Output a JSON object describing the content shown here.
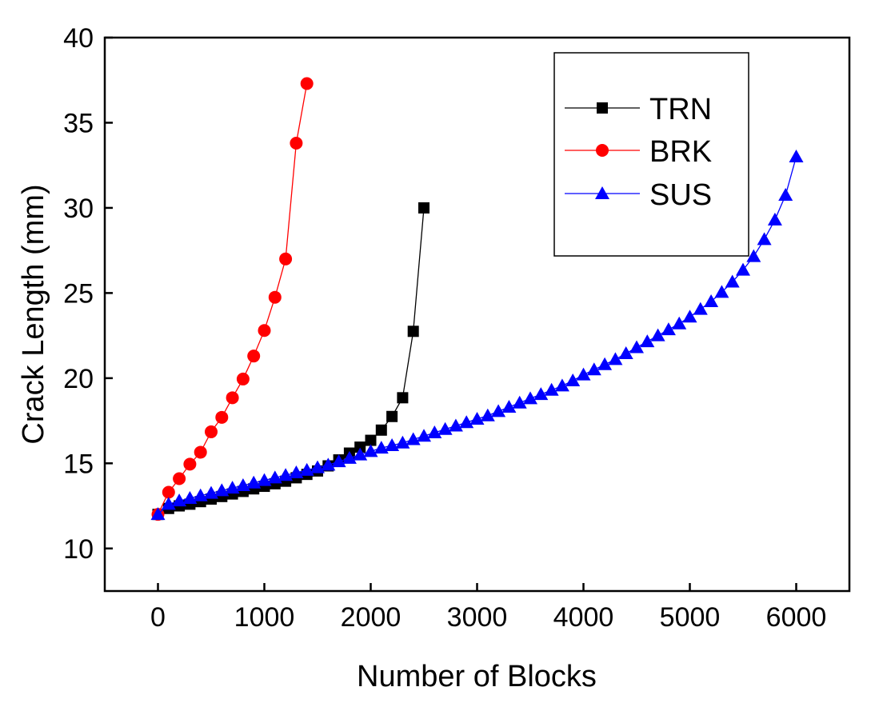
{
  "chart_data": {
    "type": "line",
    "title": "",
    "xlabel": "Number of Blocks",
    "ylabel": "Crack Length (mm)",
    "xlim": [
      -500,
      6500
    ],
    "ylim": [
      7.5,
      40
    ],
    "xticks": [
      0,
      1000,
      2000,
      3000,
      4000,
      5000,
      6000
    ],
    "yticks": [
      10,
      15,
      20,
      25,
      30,
      35,
      40
    ],
    "xtick_labels": [
      "0",
      "1000",
      "2000",
      "3000",
      "4000",
      "5000",
      "6000"
    ],
    "ytick_labels": [
      "10",
      "15",
      "20",
      "25",
      "30",
      "35",
      "40"
    ],
    "legend_position": "top-right",
    "series": [
      {
        "name": "TRN",
        "color": "#000000",
        "marker": "square",
        "x": [
          0,
          100,
          200,
          300,
          400,
          500,
          600,
          700,
          800,
          900,
          1000,
          1100,
          1200,
          1300,
          1400,
          1500,
          1600,
          1700,
          1800,
          1900,
          2000,
          2100,
          2200,
          2300,
          2400,
          2500
        ],
        "y": [
          12.0,
          12.35,
          12.5,
          12.6,
          12.75,
          12.9,
          13.05,
          13.2,
          13.35,
          13.5,
          13.65,
          13.8,
          13.95,
          14.15,
          14.35,
          14.55,
          14.85,
          15.2,
          15.6,
          15.95,
          16.35,
          16.95,
          17.75,
          18.85,
          22.75,
          30.0
        ]
      },
      {
        "name": "BRK",
        "color": "#ff0000",
        "marker": "circle",
        "x": [
          0,
          100,
          200,
          300,
          400,
          500,
          600,
          700,
          800,
          900,
          1000,
          1100,
          1200,
          1300,
          1400
        ],
        "y": [
          12.0,
          13.3,
          14.1,
          14.95,
          15.65,
          16.85,
          17.7,
          18.85,
          19.95,
          21.3,
          22.8,
          24.75,
          27.0,
          33.8,
          37.3
        ]
      },
      {
        "name": "SUS",
        "color": "#0000ff",
        "marker": "triangle",
        "x": [
          0,
          100,
          200,
          300,
          400,
          500,
          600,
          700,
          800,
          900,
          1000,
          1100,
          1200,
          1300,
          1400,
          1500,
          1600,
          1700,
          1800,
          1900,
          2000,
          2100,
          2200,
          2300,
          2400,
          2500,
          2600,
          2700,
          2800,
          2900,
          3000,
          3100,
          3200,
          3300,
          3400,
          3500,
          3600,
          3700,
          3800,
          3900,
          4000,
          4100,
          4200,
          4300,
          4400,
          4500,
          4600,
          4700,
          4800,
          4900,
          5000,
          5100,
          5200,
          5300,
          5400,
          5500,
          5600,
          5700,
          5800,
          5900,
          6000
        ],
        "y": [
          12.0,
          12.6,
          12.8,
          12.95,
          13.1,
          13.25,
          13.4,
          13.55,
          13.7,
          13.85,
          14.0,
          14.15,
          14.3,
          14.45,
          14.6,
          14.75,
          14.9,
          15.1,
          15.3,
          15.5,
          15.7,
          15.9,
          16.05,
          16.2,
          16.4,
          16.6,
          16.8,
          17.0,
          17.2,
          17.4,
          17.6,
          17.8,
          18.05,
          18.3,
          18.55,
          18.8,
          19.05,
          19.3,
          19.55,
          19.85,
          20.2,
          20.5,
          20.8,
          21.1,
          21.45,
          21.8,
          22.15,
          22.5,
          22.85,
          23.2,
          23.6,
          24.05,
          24.5,
          25.05,
          25.65,
          26.35,
          27.15,
          28.15,
          29.3,
          30.75,
          33.0
        ]
      }
    ]
  }
}
